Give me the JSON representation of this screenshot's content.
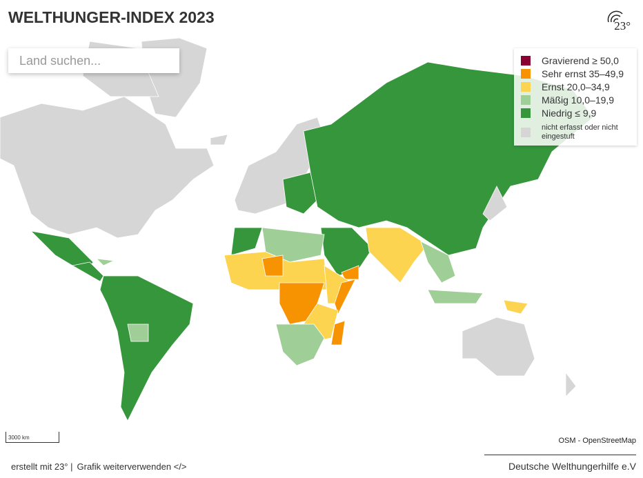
{
  "header": {
    "title": "WELTHUNGER-INDEX 2023",
    "logo": "23°"
  },
  "search": {
    "placeholder": "Land suchen..."
  },
  "legend": {
    "items": [
      {
        "label": "Gravierend ≥ 50,0",
        "color": "#8b0033"
      },
      {
        "label": "Sehr ernst 35–49,9",
        "color": "#f79200"
      },
      {
        "label": "Ernst 20,0–34,9",
        "color": "#fdd44f"
      },
      {
        "label": "Mäßig 10,0–19,9",
        "color": "#9fcf97"
      },
      {
        "label": "Niedrig ≤ 9,9",
        "color": "#36963b"
      },
      {
        "label": "nicht erfasst oder nicht eingestuft",
        "color": "#d6d6d6"
      }
    ]
  },
  "scale": {
    "label": "3000 km"
  },
  "attribution": "OSM - OpenStreetMap",
  "footer": {
    "created": "erstellt mit 23° |",
    "reuse": "Grafik weiterverwenden </>",
    "source": "Deutsche Welthungerhilfe e.V"
  }
}
